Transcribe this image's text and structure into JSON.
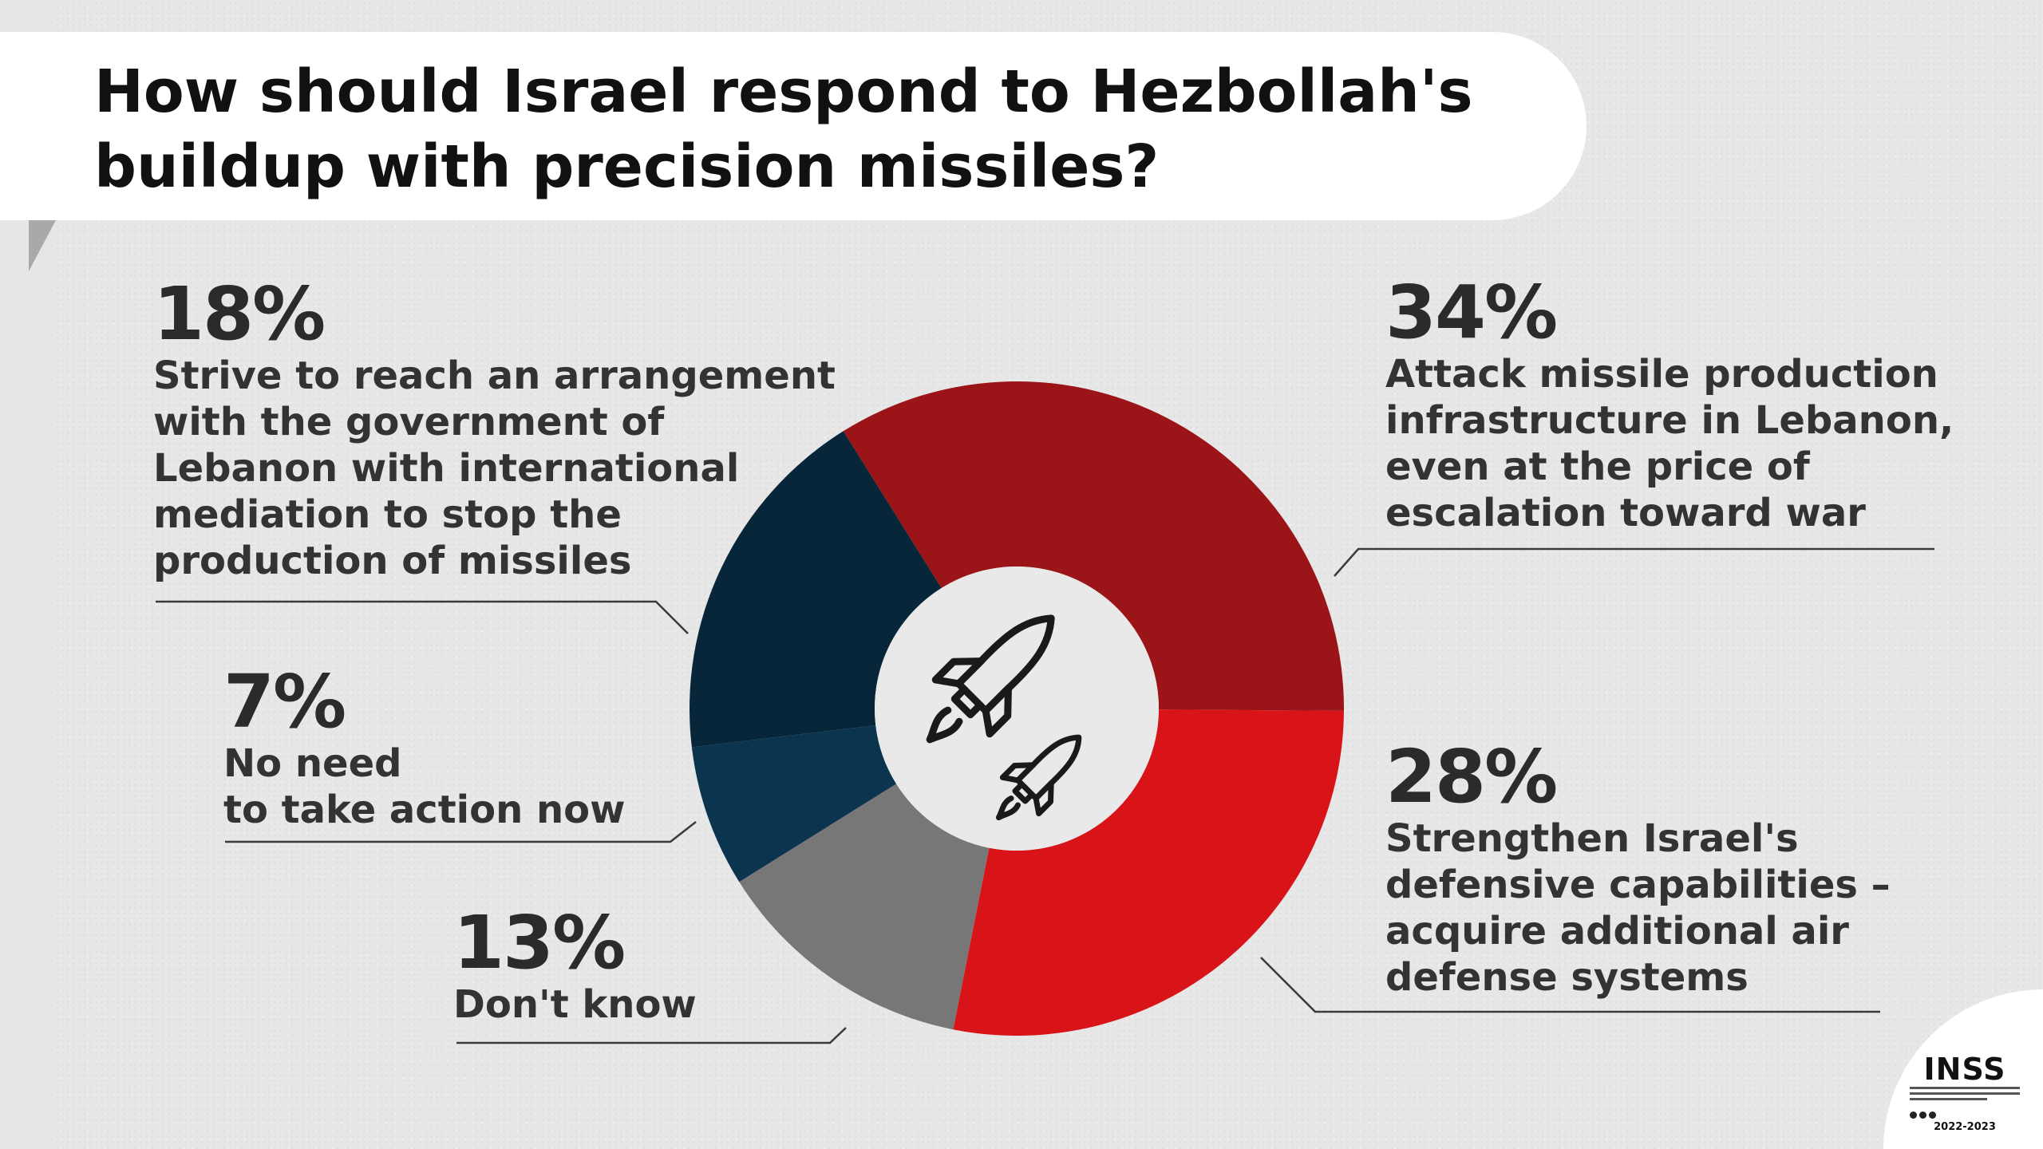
{
  "title": "How should Israel respond to Hezbollah's buildup with precision missiles?",
  "chart_data": {
    "type": "pie",
    "variant": "donut",
    "title": "How should Israel respond to Hezbollah's buildup with precision missiles?",
    "unit": "%",
    "slices": [
      {
        "id": "attack",
        "value": 34,
        "label": "34%",
        "description": "Attack missile production\ninfrastructure in Lebanon,\neven at the price of\nescalation toward war",
        "color": "#9b1418"
      },
      {
        "id": "defend",
        "value": 28,
        "label": "28%",
        "description": "Strengthen Israel's\ndefensive capabilities –\nacquire additional air\ndefense systems",
        "color": "#d81418"
      },
      {
        "id": "dontknow",
        "value": 13,
        "label": "13%",
        "description": "Don't know",
        "color": "#777777"
      },
      {
        "id": "noaction",
        "value": 7,
        "label": "7%",
        "description": "No need\nto take action now",
        "color": "#0b344f"
      },
      {
        "id": "arrangement",
        "value": 18,
        "label": "18%",
        "description": "Strive to reach an arrangement\nwith the government of\nLebanon with international\nmediation to stop the\nproduction of missiles",
        "color": "#08263a"
      }
    ],
    "center_icon": "missile-icons"
  },
  "logo": {
    "name": "INSS",
    "years": "2022-2023"
  }
}
